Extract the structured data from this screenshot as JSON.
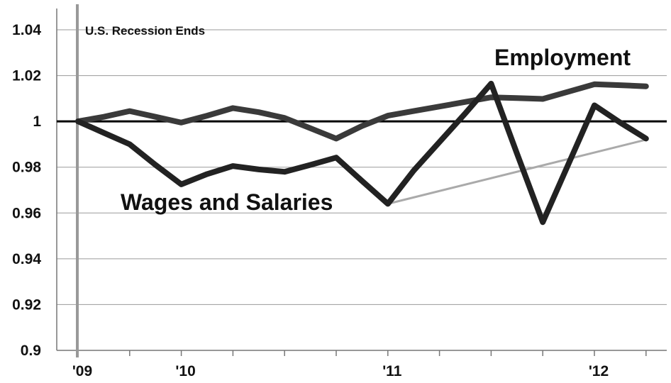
{
  "chart_data": {
    "type": "line",
    "title": "",
    "xlabel": "",
    "ylabel": "",
    "ylim": [
      0.9,
      1.04
    ],
    "grid": true,
    "y_ticks": [
      "0.9",
      "0.92",
      "0.94",
      "0.96",
      "0.98",
      "1",
      "1.02",
      "1.04"
    ],
    "x_ticks": [
      {
        "label": "'09",
        "index": 0
      },
      {
        "label": "'10",
        "index": 4
      },
      {
        "label": "'11",
        "index": 12
      },
      {
        "label": "'12",
        "index": 20
      }
    ],
    "quarters": 23,
    "reference_line": {
      "y": 1.0
    },
    "annotation": {
      "text": "U.S. Recession Ends",
      "index": 0
    },
    "trend_segment": {
      "from": [
        12,
        0.964
      ],
      "to": [
        22,
        0.992
      ]
    },
    "series": [
      {
        "name": "Employment",
        "values": [
          1.0,
          1.002,
          1.0045,
          1.002,
          0.9995,
          1.0025,
          1.0058,
          1.004,
          1.0015,
          0.997,
          0.9925,
          0.998,
          1.0025,
          1.0045,
          1.0065,
          1.0085,
          1.0105,
          1.0102,
          1.0098,
          1.013,
          1.0162,
          1.0158,
          1.0153
        ]
      },
      {
        "name": "Wages and Salaries",
        "values": [
          1.0,
          0.995,
          0.99,
          0.981,
          0.9725,
          0.977,
          0.9805,
          0.979,
          0.978,
          0.981,
          0.9842,
          0.974,
          0.964,
          0.9785,
          0.991,
          1.0035,
          1.0165,
          0.986,
          0.956,
          0.9815,
          1.007,
          0.9995,
          0.9925
        ]
      }
    ]
  },
  "colors": {
    "series_line": "#222222",
    "employment_line": "#3a3a3a",
    "reference_line": "#000000",
    "recession_line": "#999999",
    "trend_line": "#aaaaaa",
    "grid": "#9a9a9a"
  }
}
